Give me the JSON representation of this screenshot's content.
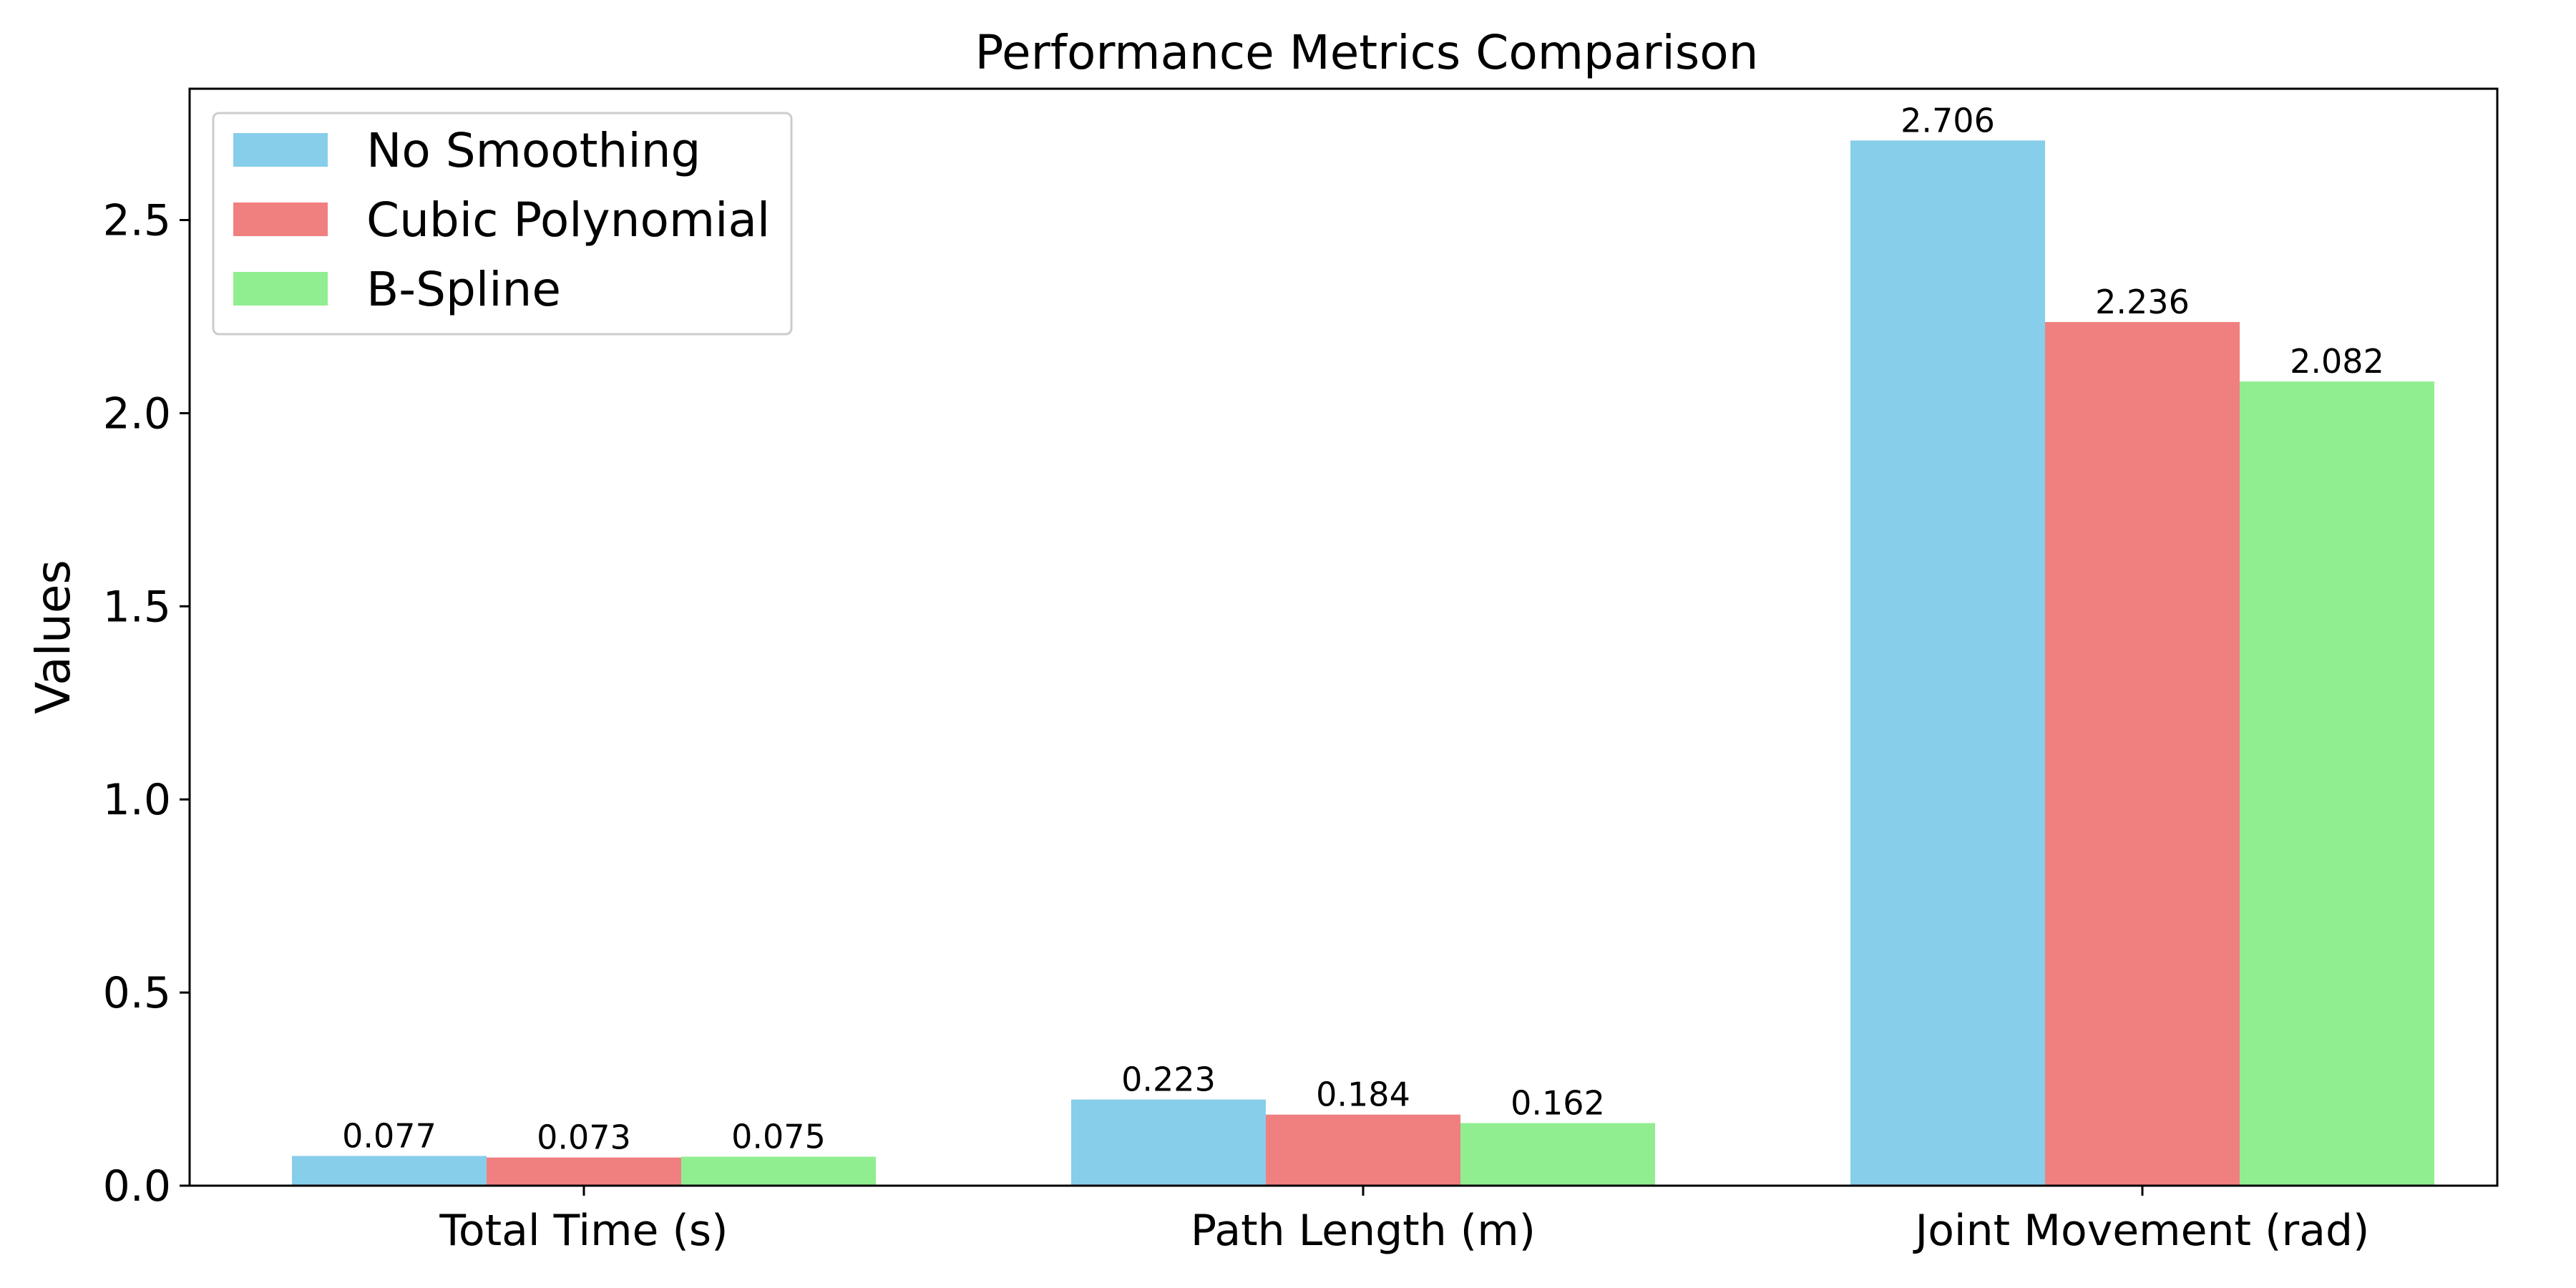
{
  "chart_data": {
    "type": "bar",
    "title": "Performance Metrics Comparison",
    "xlabel": "",
    "ylabel": "Values",
    "categories": [
      "Total Time (s)",
      "Path Length (m)",
      "Joint Movement (rad)"
    ],
    "series": [
      {
        "name": "No Smoothing",
        "color": "#87CEEB",
        "values": [
          0.077,
          0.223,
          2.706
        ],
        "labels": [
          "0.077",
          "0.223",
          "2.706"
        ]
      },
      {
        "name": "Cubic Polynomial",
        "color": "#F08080",
        "values": [
          0.073,
          0.184,
          2.236
        ],
        "labels": [
          "0.073",
          "0.184",
          "2.236"
        ]
      },
      {
        "name": "B-Spline",
        "color": "#90EE90",
        "values": [
          0.075,
          0.162,
          2.082
        ],
        "labels": [
          "0.075",
          "0.162",
          "2.082"
        ]
      }
    ],
    "ylim": [
      0,
      2.84
    ],
    "yticks": [
      0.0,
      0.5,
      1.0,
      1.5,
      2.0,
      2.5
    ],
    "ytick_labels": [
      "0.0",
      "0.5",
      "1.0",
      "1.5",
      "2.0",
      "2.5"
    ],
    "grid": false,
    "legend_position": "top-left"
  }
}
